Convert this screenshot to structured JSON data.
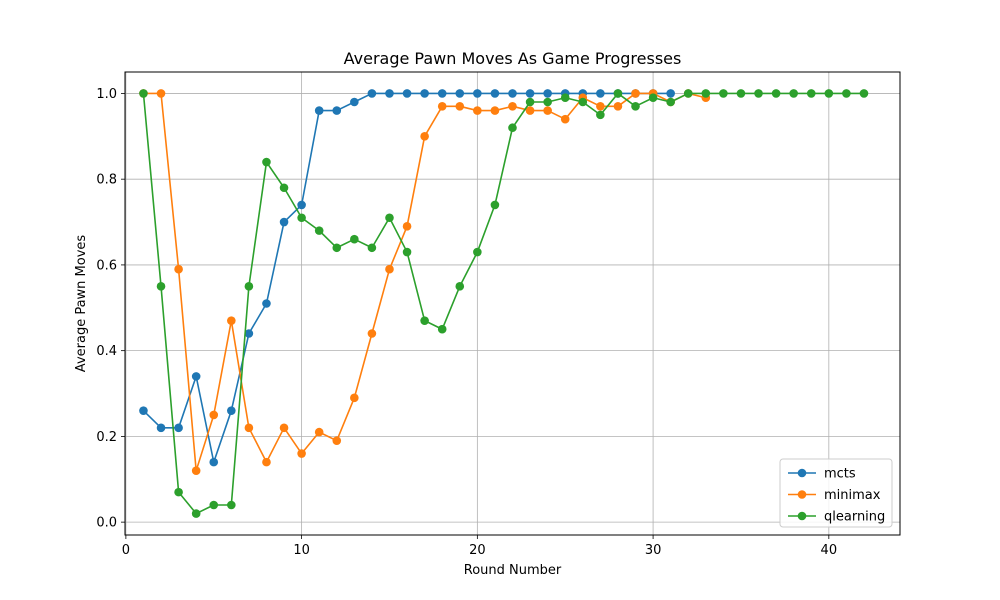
{
  "chart_data": {
    "type": "line",
    "title": "Average Pawn Moves As Game Progresses",
    "xlabel": "Round Number",
    "ylabel": "Average Pawn Moves",
    "xlim": [
      -0.05,
      44.05
    ],
    "ylim": [
      -0.03,
      1.05
    ],
    "x_ticks": [
      0,
      10,
      20,
      30,
      40
    ],
    "x_tick_labels": [
      "0",
      "10",
      "20",
      "30",
      "40"
    ],
    "y_ticks": [
      0.0,
      0.2,
      0.4,
      0.6,
      0.8,
      1.0
    ],
    "y_tick_labels": [
      "0.0",
      "0.2",
      "0.4",
      "0.6",
      "0.8",
      "1.0"
    ],
    "grid": true,
    "legend_position": "lower-right",
    "series": [
      {
        "name": "mcts",
        "color": "#1f77b4",
        "x": [
          1,
          2,
          3,
          4,
          5,
          6,
          7,
          8,
          9,
          10,
          11,
          12,
          13,
          14,
          15,
          16,
          17,
          18,
          19,
          20,
          21,
          22,
          23,
          24,
          25,
          26,
          27,
          28,
          29,
          30,
          31
        ],
        "values": [
          0.26,
          0.22,
          0.22,
          0.34,
          0.14,
          0.26,
          0.44,
          0.51,
          0.7,
          0.74,
          0.96,
          0.96,
          0.98,
          1.0,
          1.0,
          1.0,
          1.0,
          1.0,
          1.0,
          1.0,
          1.0,
          1.0,
          1.0,
          1.0,
          1.0,
          1.0,
          1.0,
          1.0,
          1.0,
          1.0,
          1.0
        ]
      },
      {
        "name": "minimax",
        "color": "#ff7f0e",
        "x": [
          1,
          2,
          3,
          4,
          5,
          6,
          7,
          8,
          9,
          10,
          11,
          12,
          13,
          14,
          15,
          16,
          17,
          18,
          19,
          20,
          21,
          22,
          23,
          24,
          25,
          26,
          27,
          28,
          29,
          30,
          31,
          32,
          33
        ],
        "values": [
          1.0,
          1.0,
          0.59,
          0.12,
          0.25,
          0.47,
          0.22,
          0.14,
          0.22,
          0.16,
          0.21,
          0.19,
          0.29,
          0.44,
          0.59,
          0.69,
          0.9,
          0.97,
          0.97,
          0.96,
          0.96,
          0.97,
          0.96,
          0.96,
          0.94,
          0.99,
          0.97,
          0.97,
          1.0,
          1.0,
          0.98,
          1.0,
          0.99
        ]
      },
      {
        "name": "qlearning",
        "color": "#2ca02c",
        "x": [
          1,
          2,
          3,
          4,
          5,
          6,
          7,
          8,
          9,
          10,
          11,
          12,
          13,
          14,
          15,
          16,
          17,
          18,
          19,
          20,
          21,
          22,
          23,
          24,
          25,
          26,
          27,
          28,
          29,
          30,
          31,
          32,
          33,
          34,
          35,
          36,
          37,
          38,
          39,
          40,
          41,
          42
        ],
        "values": [
          1.0,
          0.55,
          0.07,
          0.02,
          0.04,
          0.04,
          0.55,
          0.84,
          0.78,
          0.71,
          0.68,
          0.64,
          0.66,
          0.64,
          0.71,
          0.63,
          0.47,
          0.45,
          0.55,
          0.63,
          0.74,
          0.92,
          0.98,
          0.98,
          0.99,
          0.98,
          0.95,
          1.0,
          0.97,
          0.99,
          0.98,
          1.0,
          1.0,
          1.0,
          1.0,
          1.0,
          1.0,
          1.0,
          1.0,
          1.0,
          1.0,
          1.0
        ]
      }
    ]
  }
}
